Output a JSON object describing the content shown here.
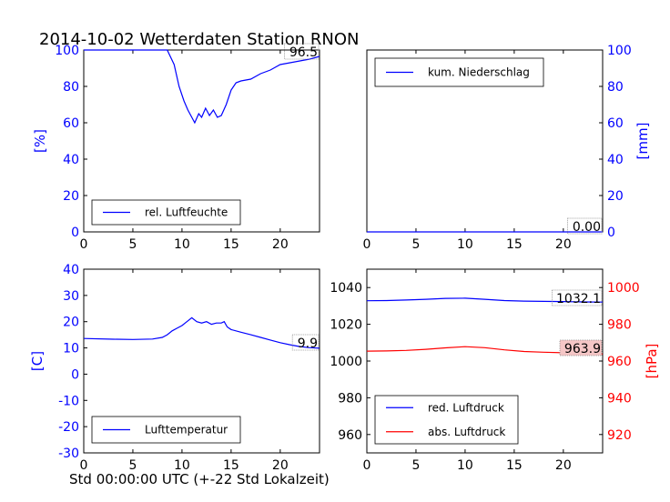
{
  "title": "2014-10-02 Wetterdaten Station RNON",
  "xlabel": "Std 00:00:00 UTC (+-22 Std Lokalzeit)",
  "colors": {
    "blue": "#0000ff",
    "red": "#ff0000",
    "black": "#000000",
    "redbox": "#f5c6c6"
  },
  "chart_data": [
    {
      "type": "line",
      "panel": "top-left",
      "ylabel": "[%]",
      "xlim": [
        0,
        24
      ],
      "ylim": [
        0,
        100
      ],
      "xticks": [
        0,
        5,
        10,
        15,
        20
      ],
      "yticks": [
        0,
        20,
        40,
        60,
        80,
        100
      ],
      "grid": false,
      "legend_position": "bottom-left",
      "last_value_label": "96.5",
      "series": [
        {
          "name": "rel. Luftfeuchte",
          "color": "#0000ff",
          "points": [
            [
              0,
              100
            ],
            [
              8.5,
              100
            ],
            [
              9.2,
              92
            ],
            [
              9.7,
              80
            ],
            [
              10.2,
              72
            ],
            [
              10.6,
              67
            ],
            [
              11.0,
              63
            ],
            [
              11.3,
              60
            ],
            [
              11.7,
              65
            ],
            [
              12.0,
              63
            ],
            [
              12.4,
              68
            ],
            [
              12.8,
              64
            ],
            [
              13.2,
              67
            ],
            [
              13.6,
              63
            ],
            [
              14.0,
              64
            ],
            [
              14.5,
              70
            ],
            [
              15.0,
              78
            ],
            [
              15.5,
              82
            ],
            [
              16.0,
              83
            ],
            [
              17.0,
              84
            ],
            [
              18.0,
              87
            ],
            [
              19.0,
              89
            ],
            [
              20.0,
              92
            ],
            [
              21.0,
              93
            ],
            [
              22.0,
              94
            ],
            [
              23.0,
              95
            ],
            [
              24,
              96.5
            ]
          ]
        }
      ]
    },
    {
      "type": "line",
      "panel": "top-right",
      "ylabel": "[mm]",
      "xlim": [
        0,
        24
      ],
      "ylim": [
        0,
        100
      ],
      "xticks": [
        0,
        5,
        10,
        15,
        20
      ],
      "yticks": [
        0,
        20,
        40,
        60,
        80,
        100
      ],
      "grid": false,
      "legend_position": "top-left",
      "last_value_label": "0.00",
      "series": [
        {
          "name": "kum. Niederschlag",
          "color": "#0000ff",
          "points": [
            [
              0,
              0
            ],
            [
              24,
              0
            ]
          ]
        }
      ]
    },
    {
      "type": "line",
      "panel": "bottom-left",
      "ylabel": "[C]",
      "xlim": [
        0,
        24
      ],
      "ylim": [
        -30,
        40
      ],
      "xticks": [
        0,
        5,
        10,
        15,
        20
      ],
      "yticks": [
        -30,
        -20,
        -10,
        0,
        10,
        20,
        30,
        40
      ],
      "grid": false,
      "legend_position": "bottom-left",
      "last_value_label": "9.9",
      "series": [
        {
          "name": "Lufttemperatur",
          "color": "#0000ff",
          "points": [
            [
              0,
              13.6
            ],
            [
              3,
              13.3
            ],
            [
              5,
              13.2
            ],
            [
              7,
              13.4
            ],
            [
              8,
              14
            ],
            [
              8.5,
              15
            ],
            [
              9,
              16.5
            ],
            [
              9.5,
              17.5
            ],
            [
              10,
              18.5
            ],
            [
              10.5,
              20
            ],
            [
              11,
              21.5
            ],
            [
              11.5,
              20
            ],
            [
              12,
              19.5
            ],
            [
              12.5,
              20
            ],
            [
              13,
              19
            ],
            [
              13.5,
              19.5
            ],
            [
              14,
              19.5
            ],
            [
              14.3,
              20
            ],
            [
              14.6,
              18
            ],
            [
              15,
              17
            ],
            [
              16,
              16
            ],
            [
              17,
              15
            ],
            [
              18,
              14
            ],
            [
              19,
              13
            ],
            [
              20,
              12
            ],
            [
              21,
              11.2
            ],
            [
              22,
              10.5
            ],
            [
              23,
              10.1
            ],
            [
              24,
              9.9
            ]
          ]
        }
      ]
    },
    {
      "type": "line",
      "panel": "bottom-right",
      "ylabel": "[hPa]",
      "xlim": [
        0,
        24
      ],
      "ylim_left": [
        950,
        1050
      ],
      "ylim_right": [
        910,
        1010
      ],
      "xticks": [
        0,
        5,
        10,
        15,
        20
      ],
      "yticks_left": [
        960,
        980,
        1000,
        1020,
        1040
      ],
      "yticks_right": [
        920,
        940,
        960,
        980,
        1000
      ],
      "grid": false,
      "legend_position": "bottom-left",
      "last_value_labels": [
        "1032.1",
        "963.9"
      ],
      "series": [
        {
          "name": "red. Luftdruck",
          "color": "#0000ff",
          "axis": "left",
          "points": [
            [
              0,
              1032.8
            ],
            [
              2,
              1032.9
            ],
            [
              4,
              1033.2
            ],
            [
              6,
              1033.6
            ],
            [
              8,
              1034.1
            ],
            [
              10,
              1034.2
            ],
            [
              12,
              1033.6
            ],
            [
              14,
              1032.9
            ],
            [
              16,
              1032.6
            ],
            [
              18,
              1032.5
            ],
            [
              20,
              1032.4
            ],
            [
              22,
              1032.2
            ],
            [
              24,
              1032.1
            ]
          ]
        },
        {
          "name": "abs. Luftdruck",
          "color": "#ff0000",
          "axis": "right",
          "points": [
            [
              0,
              965.4
            ],
            [
              2,
              965.5
            ],
            [
              4,
              965.8
            ],
            [
              6,
              966.4
            ],
            [
              8,
              967.2
            ],
            [
              10,
              967.8
            ],
            [
              12,
              967.3
            ],
            [
              14,
              966.1
            ],
            [
              16,
              965.2
            ],
            [
              18,
              964.8
            ],
            [
              20,
              964.5
            ],
            [
              22,
              964.2
            ],
            [
              24,
              963.9
            ]
          ]
        }
      ]
    }
  ]
}
